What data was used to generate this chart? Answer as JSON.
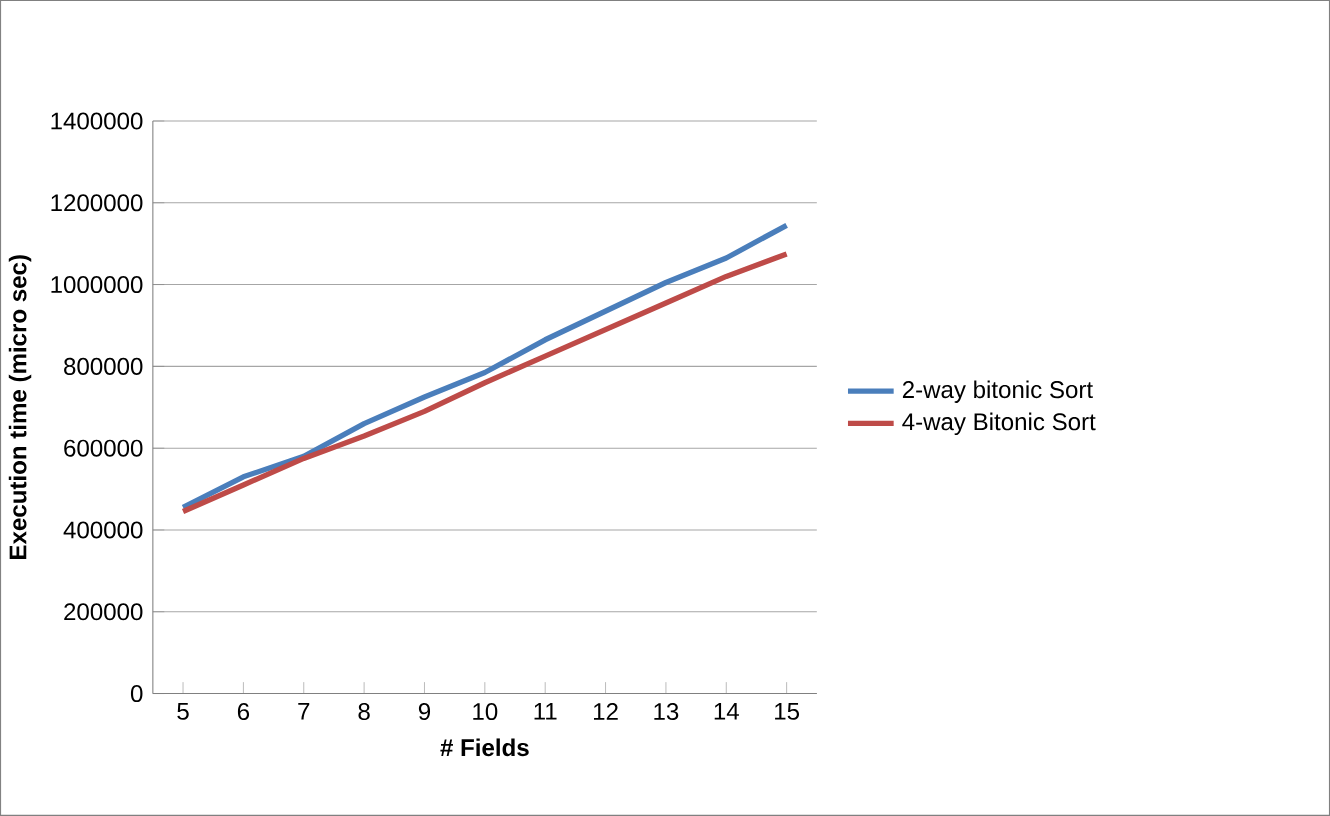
{
  "chart_data": {
    "type": "line",
    "xlabel": "# Fields",
    "ylabel": "Execution time (micro sec)",
    "categories": [
      "5",
      "6",
      "7",
      "8",
      "9",
      "10",
      "11",
      "12",
      "13",
      "14",
      "15"
    ],
    "series": [
      {
        "name": "2-way bitonic Sort",
        "color": "#4a7ebb",
        "values": [
          455000,
          530000,
          580000,
          660000,
          725000,
          785000,
          865000,
          935000,
          1005000,
          1065000,
          1145000
        ]
      },
      {
        "name": "4-way Bitonic Sort",
        "color": "#be4b48",
        "values": [
          445000,
          510000,
          575000,
          630000,
          690000,
          760000,
          825000,
          890000,
          955000,
          1020000,
          1075000
        ]
      }
    ],
    "ylim": [
      0,
      1400000
    ],
    "yticks": [
      0,
      200000,
      400000,
      600000,
      800000,
      1000000,
      1200000,
      1400000
    ],
    "grid": "y",
    "legend": "right",
    "marker": "none",
    "line_style": "solid"
  }
}
